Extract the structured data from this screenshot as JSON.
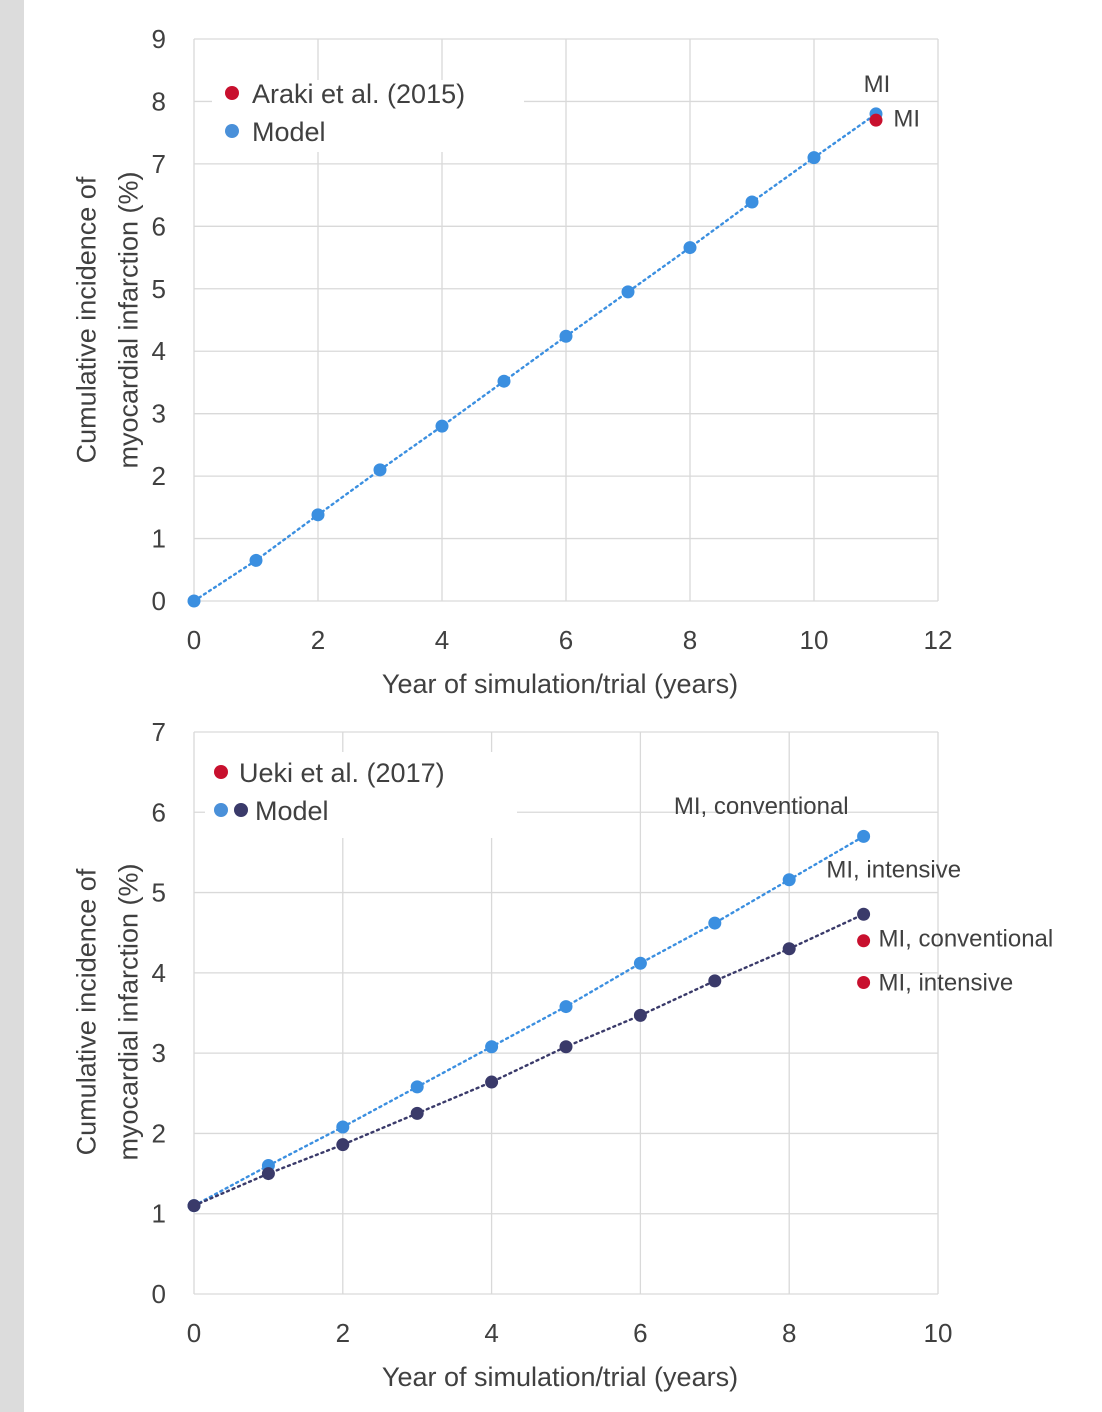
{
  "chart_data": [
    {
      "type": "scatter",
      "xlabel": "Year of simulation/trial (years)",
      "ylabel_lines": [
        "Cumulative incidence of",
        "myocardial infarction (%)"
      ],
      "xlim": [
        0,
        12
      ],
      "ylim": [
        0,
        9
      ],
      "x_ticks": [
        "0",
        "2",
        "4",
        "6",
        "8",
        "10",
        "12"
      ],
      "y_ticks": [
        "0",
        "1",
        "2",
        "3",
        "4",
        "5",
        "6",
        "7",
        "8",
        "9"
      ],
      "grid": true,
      "legend_position": "top-left",
      "legend": [
        {
          "label": "Araki et al. (2015)",
          "colors": [
            "#c8102e"
          ]
        },
        {
          "label": "Model",
          "colors": [
            "#4a90d9"
          ]
        }
      ],
      "series": [
        {
          "name": "Model",
          "color": "#3b8fe0",
          "trendline": true,
          "points": [
            [
              0,
              0
            ],
            [
              1,
              0.65
            ],
            [
              2,
              1.38
            ],
            [
              3,
              2.1
            ],
            [
              4,
              2.8
            ],
            [
              5,
              3.52
            ],
            [
              6,
              4.24
            ],
            [
              7,
              4.95
            ],
            [
              8,
              5.66
            ],
            [
              9,
              6.39
            ],
            [
              10,
              7.1
            ],
            [
              11,
              7.8
            ]
          ]
        },
        {
          "name": "Araki et al. (2015)",
          "color": "#c8102e",
          "trendline": false,
          "points": [
            [
              11,
              7.7
            ]
          ]
        }
      ],
      "annotations": [
        {
          "text": "MI",
          "x": 10.8,
          "y": 8.15,
          "anchor": "start"
        },
        {
          "text": "MI",
          "x": 11.28,
          "y": 7.6,
          "anchor": "start"
        }
      ]
    },
    {
      "type": "scatter",
      "xlabel": "Year of simulation/trial (years)",
      "ylabel_lines": [
        "Cumulative incidence of",
        "myocardial infarction (%)"
      ],
      "xlim": [
        0,
        10
      ],
      "ylim": [
        0,
        7
      ],
      "x_ticks": [
        "0",
        "2",
        "4",
        "6",
        "8",
        "10"
      ],
      "y_ticks": [
        "0",
        "1",
        "2",
        "3",
        "4",
        "5",
        "6",
        "7"
      ],
      "grid": true,
      "legend_position": "top-left",
      "legend": [
        {
          "label": "Ueki et al. (2017)",
          "colors": [
            "#c8102e"
          ]
        },
        {
          "label": "Model",
          "colors": [
            "#4a90d9",
            "#3a3a6a"
          ]
        }
      ],
      "series": [
        {
          "name": "Model (conventional)",
          "color": "#3b8fe0",
          "trendline": true,
          "points": [
            [
              0,
              1.1
            ],
            [
              1,
              1.6
            ],
            [
              2,
              2.08
            ],
            [
              3,
              2.58
            ],
            [
              4,
              3.08
            ],
            [
              5,
              3.58
            ],
            [
              6,
              4.12
            ],
            [
              7,
              4.62
            ],
            [
              8,
              5.16
            ],
            [
              9,
              5.7
            ]
          ]
        },
        {
          "name": "Model (intensive)",
          "color": "#3a3a6a",
          "trendline": true,
          "points": [
            [
              0,
              1.1
            ],
            [
              1,
              1.5
            ],
            [
              2,
              1.86
            ],
            [
              3,
              2.25
            ],
            [
              4,
              2.64
            ],
            [
              5,
              3.08
            ],
            [
              6,
              3.47
            ],
            [
              7,
              3.9
            ],
            [
              8,
              4.3
            ],
            [
              9,
              4.73
            ]
          ]
        },
        {
          "name": "Ueki et al. (2017)",
          "color": "#c8102e",
          "trendline": false,
          "points": [
            [
              9,
              4.4
            ],
            [
              9,
              3.88
            ]
          ]
        }
      ],
      "annotations": [
        {
          "text": "MI, conventional",
          "x": 6.45,
          "y": 5.98,
          "anchor": "start"
        },
        {
          "text": "MI, intensive",
          "x": 8.5,
          "y": 5.19,
          "anchor": "start"
        },
        {
          "text": "MI, conventional",
          "x": 9.2,
          "y": 4.33,
          "anchor": "start"
        },
        {
          "text": "MI, intensive",
          "x": 9.2,
          "y": 3.78,
          "anchor": "start"
        }
      ]
    }
  ]
}
